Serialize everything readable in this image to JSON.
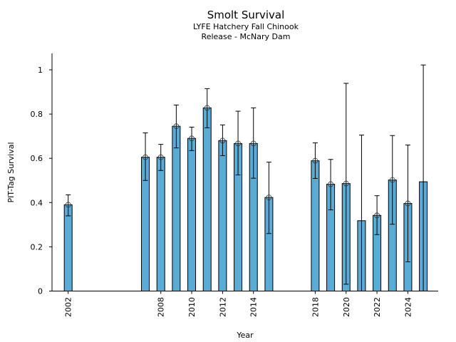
{
  "chart_data": {
    "type": "bar",
    "title": "Smolt Survival",
    "subtitle_lines": [
      "LYFE Hatchery Fall Chinook",
      "Release - McNary Dam"
    ],
    "xlabel": "Year",
    "ylabel": "PIT-Tag Survival",
    "xlim": [
      2000.95,
      2026.0
    ],
    "ylim": [
      0,
      1.07
    ],
    "x_ticks": [
      2002,
      2008,
      2010,
      2012,
      2014,
      2018,
      2020,
      2022,
      2024
    ],
    "x_tick_labels": [
      "2002",
      "2008",
      "2010",
      "2012",
      "2014",
      "2018",
      "2020",
      "2022",
      "2024"
    ],
    "y_ticks": [
      0,
      0.2,
      0.4,
      0.6,
      0.8,
      1
    ],
    "y_tick_labels": [
      "0",
      "0.2",
      "0.4",
      "0.6",
      "0.8",
      "1"
    ],
    "grid": false,
    "bar_color": "#5aabd6",
    "points": [
      {
        "year": 2002,
        "value": 0.39,
        "lower": 0.34,
        "upper": 0.435,
        "marker": true
      },
      {
        "year": 2007,
        "value": 0.605,
        "lower": 0.5,
        "upper": 0.715,
        "marker": true
      },
      {
        "year": 2008,
        "value": 0.605,
        "lower": 0.545,
        "upper": 0.663,
        "marker": true
      },
      {
        "year": 2009,
        "value": 0.745,
        "lower": 0.647,
        "upper": 0.841,
        "marker": true
      },
      {
        "year": 2010,
        "value": 0.69,
        "lower": 0.635,
        "upper": 0.741,
        "marker": true
      },
      {
        "year": 2011,
        "value": 0.828,
        "lower": 0.738,
        "upper": 0.915,
        "marker": true
      },
      {
        "year": 2012,
        "value": 0.68,
        "lower": 0.612,
        "upper": 0.751,
        "marker": true
      },
      {
        "year": 2013,
        "value": 0.667,
        "lower": 0.525,
        "upper": 0.813,
        "marker": true
      },
      {
        "year": 2014,
        "value": 0.667,
        "lower": 0.51,
        "upper": 0.828,
        "marker": true
      },
      {
        "year": 2015,
        "value": 0.423,
        "lower": 0.26,
        "upper": 0.583,
        "marker": true
      },
      {
        "year": 2018,
        "value": 0.589,
        "lower": 0.509,
        "upper": 0.67,
        "marker": true
      },
      {
        "year": 2019,
        "value": 0.483,
        "lower": 0.367,
        "upper": 0.595,
        "marker": true
      },
      {
        "year": 2020,
        "value": 0.486,
        "lower": 0.031,
        "upper": 0.939,
        "marker": true
      },
      {
        "year": 2021,
        "value": 0.318,
        "lower": 0.0,
        "upper": 0.705,
        "marker": false
      },
      {
        "year": 2022,
        "value": 0.342,
        "lower": 0.255,
        "upper": 0.431,
        "marker": true
      },
      {
        "year": 2023,
        "value": 0.502,
        "lower": 0.302,
        "upper": 0.703,
        "marker": true
      },
      {
        "year": 2024,
        "value": 0.396,
        "lower": 0.132,
        "upper": 0.66,
        "marker": true
      },
      {
        "year": 2025,
        "value": 0.494,
        "lower": 0.0,
        "upper": 1.022,
        "marker": false
      }
    ]
  }
}
